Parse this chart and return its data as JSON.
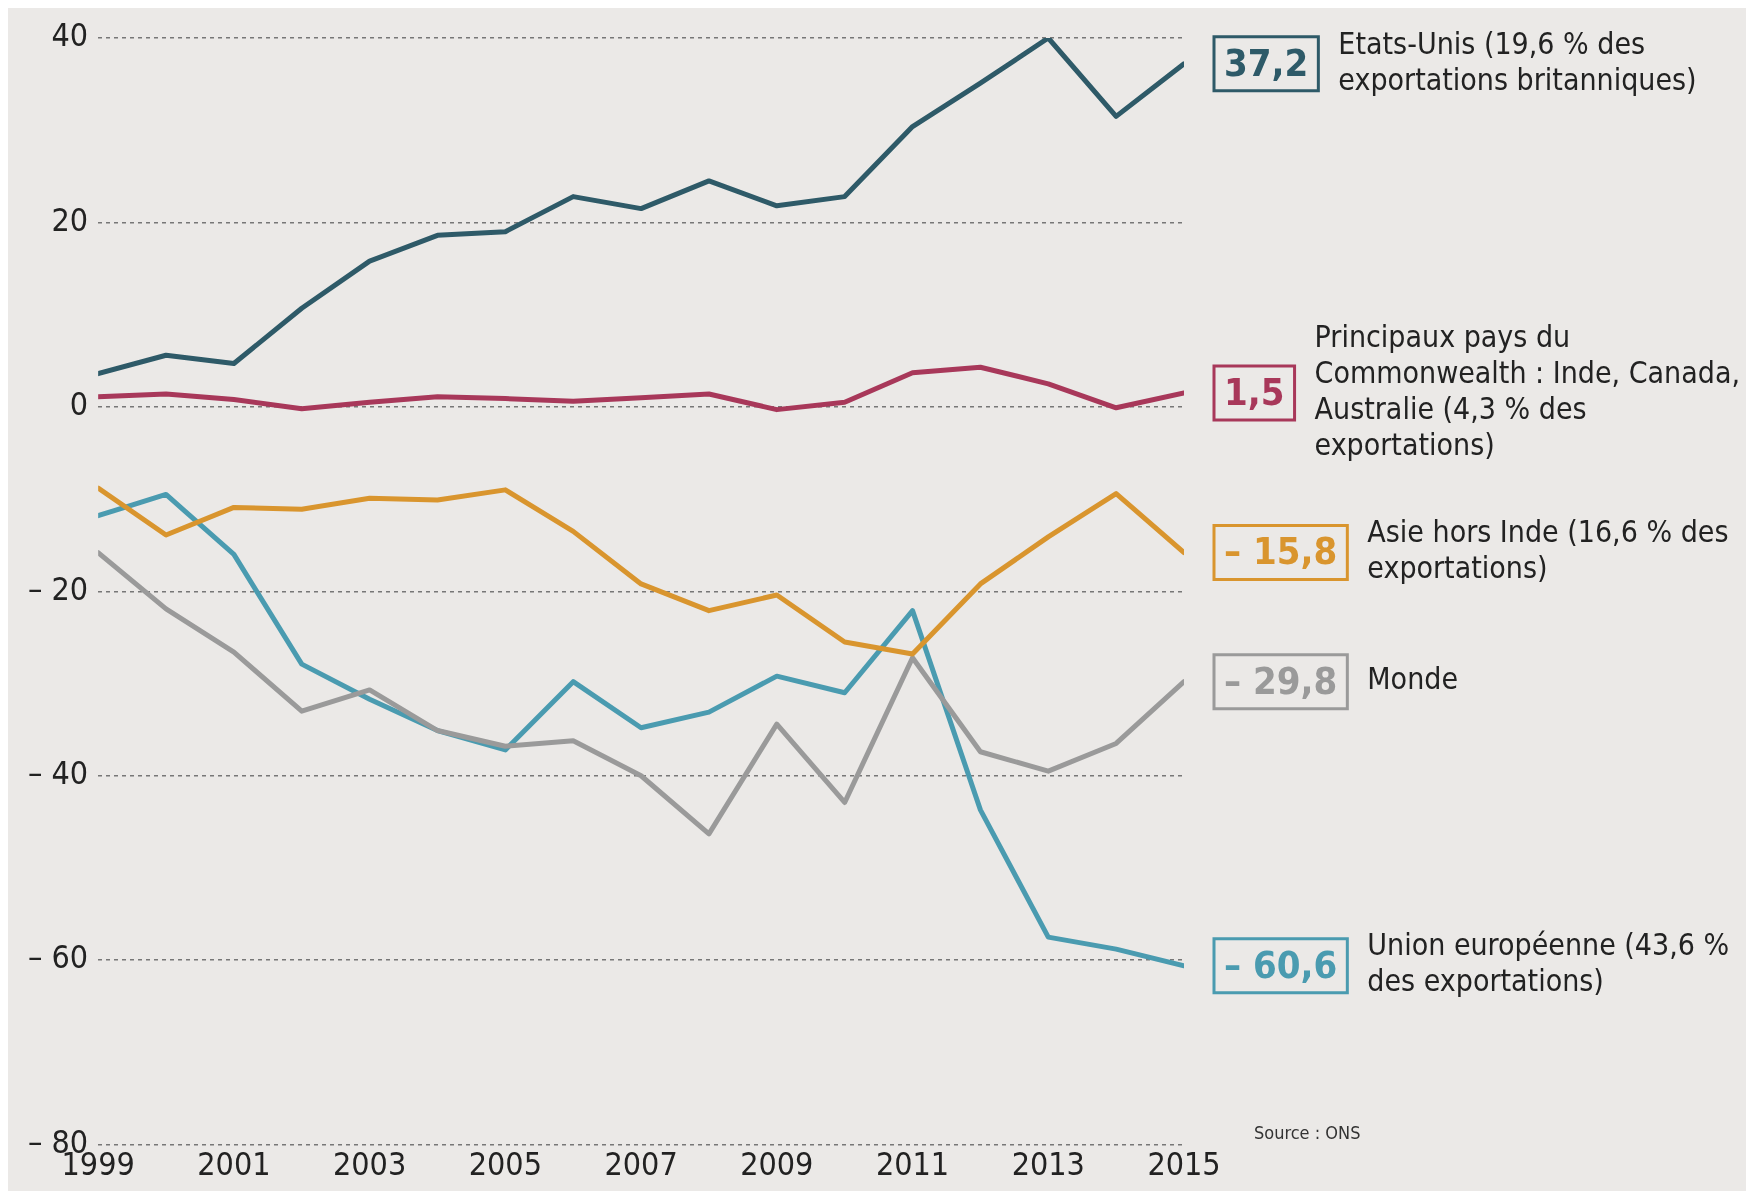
{
  "chart_data": {
    "type": "line",
    "x": [
      1999,
      2000,
      2001,
      2002,
      2003,
      2004,
      2005,
      2006,
      2007,
      2008,
      2009,
      2010,
      2011,
      2012,
      2013,
      2014,
      2015
    ],
    "series": [
      {
        "name": "Etats-Unis (19,6 % des exportations britanniques)",
        "color": "#2e5a68",
        "values": [
          3.6,
          5.6,
          4.7,
          10.7,
          15.8,
          18.6,
          19,
          22.8,
          21.5,
          24.5,
          21.8,
          22.8,
          30.4,
          35.1,
          40,
          31.5,
          37.2
        ],
        "value_labels": [
          null,
          null,
          null,
          null,
          null,
          null,
          null,
          null,
          null,
          null,
          null,
          null,
          null,
          null,
          null,
          null,
          "37,2"
        ]
      },
      {
        "name": "Principaux pays du Commonwealth : Inde, Canada, Australie (4,3 % des exportations)",
        "color": "#a8385a",
        "values": [
          1.1,
          1.4,
          0.8,
          -0.2,
          0.5,
          1.1,
          0.9,
          0.6,
          1,
          1.4,
          -0.3,
          0.5,
          3.7,
          4.3,
          2.5,
          -0.1,
          1.5
        ],
        "value_labels": [
          null,
          null,
          null,
          null,
          null,
          null,
          null,
          null,
          null,
          null,
          null,
          null,
          null,
          null,
          null,
          null,
          "1,5"
        ]
      },
      {
        "name": "Asie hors Inde (16,6 % des exportations)",
        "color": "#d9952e",
        "values": [
          -8.8,
          -13.9,
          -10.9,
          -11.1,
          -9.9,
          -10.1,
          -9,
          -13.5,
          -19.2,
          -22.1,
          -20.4,
          -25.5,
          -26.8,
          -19.2,
          -14.1,
          -9.4,
          -15.8
        ],
        "value_labels": [
          null,
          null,
          null,
          null,
          null,
          null,
          null,
          null,
          null,
          null,
          null,
          null,
          null,
          null,
          null,
          null,
          "– 15,8"
        ]
      },
      {
        "name": "Monde",
        "color": "#9a9a9a",
        "values": [
          -15.8,
          -21.9,
          -26.6,
          -33,
          -30.7,
          -35.1,
          -36.8,
          -36.2,
          -40,
          -46.3,
          -34.4,
          -42.9,
          -27.2,
          -37.4,
          -39.5,
          -36.5,
          -29.8
        ],
        "value_labels": [
          null,
          null,
          null,
          null,
          null,
          null,
          null,
          null,
          null,
          null,
          null,
          null,
          null,
          null,
          null,
          null,
          "– 29,8"
        ]
      },
      {
        "name": "Union européenne (43,6 % des exportations)",
        "color": "#4a9bb0",
        "values": [
          -11.8,
          -9.5,
          -16,
          -27.9,
          -31.7,
          -35.1,
          -37.2,
          -29.8,
          -34.8,
          -33.1,
          -29.2,
          -31,
          -22.1,
          -43.7,
          -57.5,
          -58.8,
          -60.6
        ],
        "value_labels": [
          null,
          null,
          null,
          null,
          null,
          null,
          null,
          null,
          null,
          null,
          null,
          null,
          null,
          null,
          null,
          null,
          "– 60,6"
        ]
      }
    ],
    "xlim": [
      1999,
      2015
    ],
    "xticks": [
      1999,
      2001,
      2003,
      2005,
      2007,
      2009,
      2011,
      2013,
      2015
    ],
    "ylim": [
      -80,
      40
    ],
    "yticks": [
      {
        "value": -80,
        "label": "– 80"
      },
      {
        "value": -60,
        "label": "– 60"
      },
      {
        "value": -40,
        "label": "– 40"
      },
      {
        "value": -20,
        "label": "– 20"
      },
      0,
      20,
      40
    ],
    "grid": "y",
    "legend": "right",
    "marker": "none",
    "line_style": "solid",
    "annotations": [
      "Source : ONS"
    ]
  }
}
